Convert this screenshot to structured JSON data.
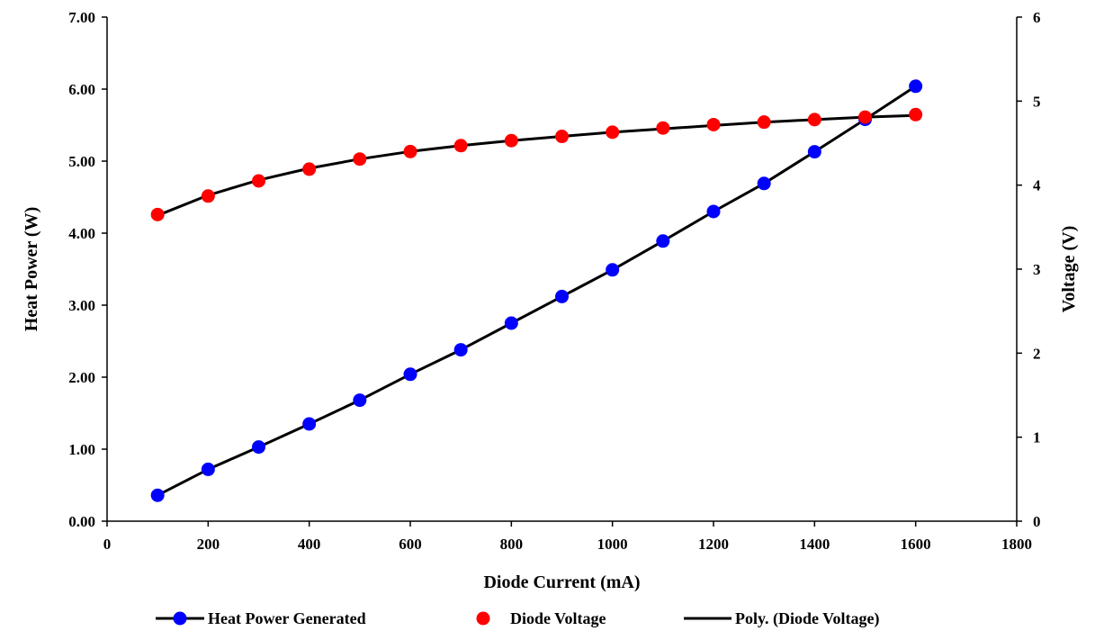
{
  "chart_data": {
    "type": "scatter",
    "title": "",
    "xlabel": "Diode Current (mA)",
    "ylabel": "Heat Power (W)",
    "y2label": "Voltage (V)",
    "xlim": [
      0,
      1800
    ],
    "ylim": [
      0,
      7
    ],
    "y2lim": [
      0,
      6
    ],
    "x_ticks": [
      "0",
      "200",
      "400",
      "600",
      "800",
      "1000",
      "1200",
      "1400",
      "1600",
      "1800"
    ],
    "y_ticks": [
      "0.00",
      "1.00",
      "2.00",
      "3.00",
      "4.00",
      "5.00",
      "6.00",
      "7.00"
    ],
    "y2_ticks": [
      "0",
      "1",
      "2",
      "3",
      "4",
      "5",
      "6"
    ],
    "grid": false,
    "legend_position": "bottom",
    "series": [
      {
        "name": "Heat Power Generated",
        "axis": "left",
        "style": "line-markers",
        "color": "#0000ff",
        "line_color": "#000000",
        "x": [
          100,
          200,
          300,
          400,
          500,
          600,
          700,
          800,
          900,
          1000,
          1100,
          1200,
          1300,
          1400,
          1500,
          1600
        ],
        "y": [
          0.36,
          0.72,
          1.03,
          1.35,
          1.68,
          2.04,
          2.38,
          2.75,
          3.12,
          3.49,
          3.89,
          4.3,
          4.69,
          5.13,
          5.58,
          6.04
        ]
      },
      {
        "name": "Diode Voltage",
        "axis": "right",
        "style": "markers",
        "color": "#ff0000",
        "x": [
          100,
          200,
          300,
          400,
          500,
          600,
          700,
          800,
          900,
          1000,
          1100,
          1200,
          1300,
          1400,
          1500,
          1600
        ],
        "y": [
          3.65,
          3.87,
          4.05,
          4.19,
          4.31,
          4.4,
          4.47,
          4.53,
          4.58,
          4.63,
          4.68,
          4.72,
          4.75,
          4.78,
          4.81,
          4.84
        ]
      },
      {
        "name": "Poly. (Diode Voltage)",
        "axis": "right",
        "style": "line",
        "color": "#000000",
        "x": [
          100,
          200,
          300,
          400,
          500,
          600,
          700,
          800,
          900,
          1000,
          1100,
          1200,
          1300,
          1400,
          1500,
          1600
        ],
        "y": [
          3.64,
          3.88,
          4.06,
          4.2,
          4.31,
          4.4,
          4.47,
          4.53,
          4.58,
          4.63,
          4.67,
          4.71,
          4.75,
          4.78,
          4.81,
          4.83
        ]
      }
    ]
  }
}
